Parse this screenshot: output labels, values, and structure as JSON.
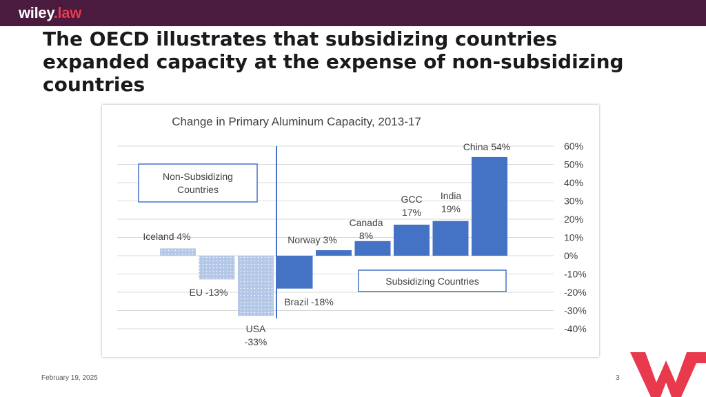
{
  "header": {
    "logo_main": "wiley",
    "logo_suffix": ".law",
    "brand_color": "#4a1a3f",
    "accent_color": "#e8394d"
  },
  "slide": {
    "title": "The OECD illustrates that subsidizing countries expanded capacity at the expense of non-subsidizing countries"
  },
  "footer": {
    "date": "February 19, 2025",
    "page": "3"
  },
  "chart_data": {
    "type": "bar",
    "title": "Change in Primary Aluminum Capacity, 2013-17",
    "ylim": [
      -40,
      60
    ],
    "yticks": [
      "60%",
      "50%",
      "40%",
      "30%",
      "20%",
      "10%",
      "0%",
      "-10%",
      "-20%",
      "-30%",
      "-40%"
    ],
    "grid": true,
    "group_labels": {
      "non_subsidizing": [
        "Non-Subsidizing",
        "Countries"
      ],
      "subsidizing": "Subsidizing Countries"
    },
    "series": [
      {
        "group": "non-subsidizing",
        "color": "#b4c7e7",
        "categories": [
          "Iceland",
          "EU",
          "USA"
        ],
        "values": [
          4,
          -13,
          -33
        ],
        "labels": [
          [
            "Iceland 4%"
          ],
          [
            "EU -13%"
          ],
          [
            "USA",
            "-33%"
          ]
        ]
      },
      {
        "group": "subsidizing",
        "color": "#4472c4",
        "categories": [
          "Brazil",
          "Norway",
          "Canada",
          "GCC",
          "India",
          "China"
        ],
        "values": [
          -18,
          3,
          8,
          17,
          19,
          54
        ],
        "labels": [
          [
            "Brazil -18%"
          ],
          [
            "Norway 3%"
          ],
          [
            "Canada",
            "8%"
          ],
          [
            "GCC",
            "17%"
          ],
          [
            "India",
            "19%"
          ],
          [
            "China 54%"
          ]
        ]
      }
    ]
  }
}
